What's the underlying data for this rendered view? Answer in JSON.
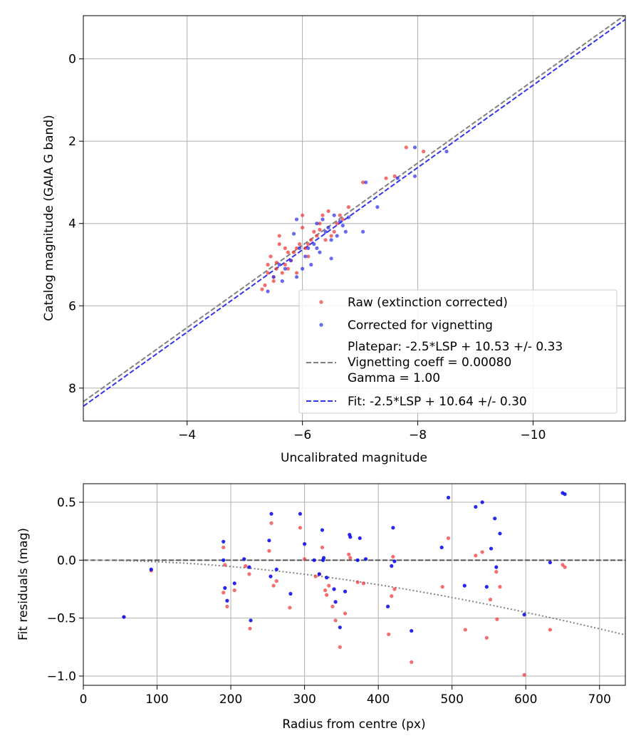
{
  "chart_data": [
    {
      "type": "scatter",
      "xlabel": "Uncalibrated magnitude",
      "ylabel": "Catalog magnitude (GAIA G band)",
      "xlim": [
        -2.2,
        -11.6
      ],
      "ylim": [
        8.8,
        -1.05
      ],
      "xticks": [
        -4,
        -6,
        -8,
        -10
      ],
      "xtick_labels": [
        "−4",
        "−6",
        "−8",
        "−10"
      ],
      "yticks": [
        0,
        2,
        4,
        6,
        8
      ],
      "ytick_labels": [
        "0",
        "2",
        "4",
        "6",
        "8"
      ],
      "grid": true,
      "legend_position": "lower-right",
      "legend": {
        "raw": "Raw (extinction corrected)",
        "corrected": "Corrected for vignetting",
        "platepar": [
          "Platepar: -2.5*LSP + 10.53 +/- 0.33",
          "Vignetting coeff = 0.00080",
          "Gamma = 1.00"
        ],
        "fit": "Fit: -2.5*LSP + 10.64 +/- 0.30"
      },
      "lines": [
        {
          "name": "Platepar",
          "slope": 1.0,
          "intercept": 10.53,
          "color": "#808080",
          "style": "dashed"
        },
        {
          "name": "Fit",
          "slope": 1.0,
          "intercept": 10.64,
          "color": "#3333ee",
          "style": "dashed"
        }
      ],
      "series": [
        {
          "name": "Raw (extinction corrected)",
          "color": "#f03030",
          "points": [
            [
              -5.3,
              5.6
            ],
            [
              -5.4,
              5.2
            ],
            [
              -5.4,
              5.0
            ],
            [
              -5.45,
              4.8
            ],
            [
              -5.5,
              5.4
            ],
            [
              -5.5,
              5.3
            ],
            [
              -5.55,
              5.1
            ],
            [
              -5.6,
              4.5
            ],
            [
              -5.6,
              4.3
            ],
            [
              -5.65,
              5.2
            ],
            [
              -5.7,
              4.6
            ],
            [
              -5.7,
              5.0
            ],
            [
              -5.75,
              4.7
            ],
            [
              -5.8,
              4.9
            ],
            [
              -5.85,
              4.7
            ],
            [
              -5.9,
              5.2
            ],
            [
              -5.9,
              4.6
            ],
            [
              -5.95,
              4.5
            ],
            [
              -6.0,
              4.1
            ],
            [
              -6.0,
              3.8
            ],
            [
              -6.05,
              4.6
            ],
            [
              -6.1,
              4.5
            ],
            [
              -6.15,
              4.4
            ],
            [
              -6.2,
              4.2
            ],
            [
              -6.25,
              4.3
            ],
            [
              -6.3,
              4.0
            ],
            [
              -6.35,
              3.8
            ],
            [
              -6.4,
              4.4
            ],
            [
              -6.45,
              3.7
            ],
            [
              -6.5,
              4.3
            ],
            [
              -6.55,
              4.2
            ],
            [
              -6.6,
              4.0
            ],
            [
              -6.65,
              3.8
            ],
            [
              -6.7,
              3.9
            ],
            [
              -6.8,
              3.6
            ],
            [
              -7.05,
              3.0
            ],
            [
              -7.45,
              2.9
            ],
            [
              -7.6,
              2.85
            ],
            [
              -7.8,
              2.15
            ],
            [
              -8.1,
              2.25
            ],
            [
              -5.35,
              5.5
            ],
            [
              -5.55,
              4.95
            ],
            [
              -5.75,
              5.1
            ],
            [
              -6.1,
              4.8
            ],
            [
              -6.3,
              4.15
            ]
          ]
        },
        {
          "name": "Corrected for vignetting",
          "color": "#2828ee",
          "points": [
            [
              -5.4,
              5.65
            ],
            [
              -5.5,
              5.3
            ],
            [
              -5.6,
              5.0
            ],
            [
              -5.65,
              5.4
            ],
            [
              -5.7,
              5.1
            ],
            [
              -5.8,
              4.9
            ],
            [
              -5.85,
              4.25
            ],
            [
              -5.9,
              5.3
            ],
            [
              -5.95,
              4.6
            ],
            [
              -6.0,
              5.1
            ],
            [
              -6.05,
              4.8
            ],
            [
              -6.1,
              4.6
            ],
            [
              -6.15,
              5.0
            ],
            [
              -6.2,
              4.5
            ],
            [
              -6.25,
              4.0
            ],
            [
              -6.3,
              4.7
            ],
            [
              -6.35,
              3.9
            ],
            [
              -6.4,
              4.2
            ],
            [
              -6.45,
              4.1
            ],
            [
              -6.5,
              4.4
            ],
            [
              -6.55,
              3.8
            ],
            [
              -6.6,
              4.3
            ],
            [
              -6.65,
              3.95
            ],
            [
              -6.7,
              4.05
            ],
            [
              -6.75,
              4.2
            ],
            [
              -6.8,
              3.85
            ],
            [
              -7.05,
              4.2
            ],
            [
              -7.1,
              3.0
            ],
            [
              -7.3,
              3.6
            ],
            [
              -7.65,
              2.9
            ],
            [
              -7.95,
              2.85
            ],
            [
              -7.95,
              2.15
            ],
            [
              -8.5,
              2.25
            ],
            [
              -5.9,
              3.9
            ],
            [
              -6.5,
              4.85
            ],
            [
              -6.25,
              4.6
            ]
          ]
        }
      ]
    },
    {
      "type": "scatter",
      "xlabel": "Radius from centre (px)",
      "ylabel": "Fit residuals (mag)",
      "xlim": [
        0,
        735
      ],
      "ylim": [
        -1.08,
        0.66
      ],
      "xticks": [
        0,
        100,
        200,
        300,
        400,
        500,
        600,
        700
      ],
      "xtick_labels": [
        "0",
        "100",
        "200",
        "300",
        "400",
        "500",
        "600",
        "700"
      ],
      "yticks": [
        0.5,
        0.0,
        -0.5,
        -1.0
      ],
      "ytick_labels": [
        "0.5",
        "0.0",
        "−0.5",
        "−1.0"
      ],
      "grid": true,
      "lines": [
        {
          "name": "zero",
          "color": "#555555",
          "style": "dashed"
        },
        {
          "name": "vignetting model",
          "color": "#808080",
          "style": "dotted",
          "coeff": 0.0008
        }
      ],
      "series": [
        {
          "name": "Raw",
          "color": "#f03030",
          "points": [
            [
              55,
              -0.49
            ],
            [
              92,
              -0.09
            ],
            [
              190,
              0.11
            ],
            [
              190,
              -0.28
            ],
            [
              192,
              -0.04
            ],
            [
              195,
              -0.4
            ],
            [
              205,
              -0.26
            ],
            [
              220,
              -0.05
            ],
            [
              225,
              -0.12
            ],
            [
              226,
              -0.59
            ],
            [
              252,
              0.08
            ],
            [
              255,
              0.32
            ],
            [
              258,
              -0.22
            ],
            [
              262,
              -0.18
            ],
            [
              280,
              -0.41
            ],
            [
              294,
              0.28
            ],
            [
              300,
              0.01
            ],
            [
              315,
              -0.14
            ],
            [
              320,
              -0.12
            ],
            [
              324,
              0.11
            ],
            [
              328,
              -0.26
            ],
            [
              330,
              -0.3
            ],
            [
              333,
              -0.22
            ],
            [
              338,
              -0.4
            ],
            [
              342,
              -0.52
            ],
            [
              348,
              -0.75
            ],
            [
              355,
              -0.46
            ],
            [
              360,
              0.05
            ],
            [
              362,
              0.02
            ],
            [
              372,
              -0.19
            ],
            [
              380,
              -0.2
            ],
            [
              414,
              -0.64
            ],
            [
              418,
              -0.31
            ],
            [
              420,
              0.03
            ],
            [
              422,
              -0.25
            ],
            [
              445,
              -0.88
            ],
            [
              487,
              -0.23
            ],
            [
              495,
              0.19
            ],
            [
              518,
              -0.6
            ],
            [
              532,
              0.04
            ],
            [
              541,
              0.07
            ],
            [
              547,
              -0.67
            ],
            [
              552,
              -0.34
            ],
            [
              560,
              -0.1
            ],
            [
              561,
              -0.51
            ],
            [
              565,
              -0.23
            ],
            [
              598,
              -0.99
            ],
            [
              633,
              -0.6
            ],
            [
              650,
              -0.04
            ],
            [
              653,
              -0.06
            ]
          ]
        },
        {
          "name": "Corrected",
          "color": "#1010ee",
          "points": [
            [
              55,
              -0.49
            ],
            [
              92,
              -0.08
            ],
            [
              190,
              0.16
            ],
            [
              190,
              0.0
            ],
            [
              192,
              -0.24
            ],
            [
              195,
              -0.35
            ],
            [
              205,
              -0.2
            ],
            [
              218,
              0.01
            ],
            [
              225,
              -0.06
            ],
            [
              227,
              -0.52
            ],
            [
              252,
              0.17
            ],
            [
              255,
              0.4
            ],
            [
              254,
              -0.14
            ],
            [
              262,
              -0.08
            ],
            [
              281,
              -0.29
            ],
            [
              294,
              0.4
            ],
            [
              300,
              0.14
            ],
            [
              313,
              0.0
            ],
            [
              320,
              -0.12
            ],
            [
              324,
              0.26
            ],
            [
              325,
              0.0
            ],
            [
              326,
              0.02
            ],
            [
              330,
              -0.15
            ],
            [
              340,
              -0.25
            ],
            [
              342,
              -0.36
            ],
            [
              348,
              -0.58
            ],
            [
              355,
              -0.27
            ],
            [
              361,
              0.22
            ],
            [
              362,
              0.2
            ],
            [
              372,
              0.0
            ],
            [
              375,
              0.19
            ],
            [
              383,
              0.01
            ],
            [
              413,
              -0.4
            ],
            [
              418,
              -0.05
            ],
            [
              420,
              0.28
            ],
            [
              422,
              -0.01
            ],
            [
              445,
              -0.61
            ],
            [
              486,
              0.11
            ],
            [
              495,
              0.54
            ],
            [
              517,
              -0.22
            ],
            [
              532,
              0.46
            ],
            [
              541,
              0.5
            ],
            [
              547,
              -0.23
            ],
            [
              553,
              0.1
            ],
            [
              558,
              0.36
            ],
            [
              560,
              -0.06
            ],
            [
              565,
              0.23
            ],
            [
              598,
              -0.47
            ],
            [
              633,
              -0.02
            ],
            [
              650,
              0.58
            ],
            [
              653,
              0.57
            ]
          ]
        }
      ]
    }
  ]
}
